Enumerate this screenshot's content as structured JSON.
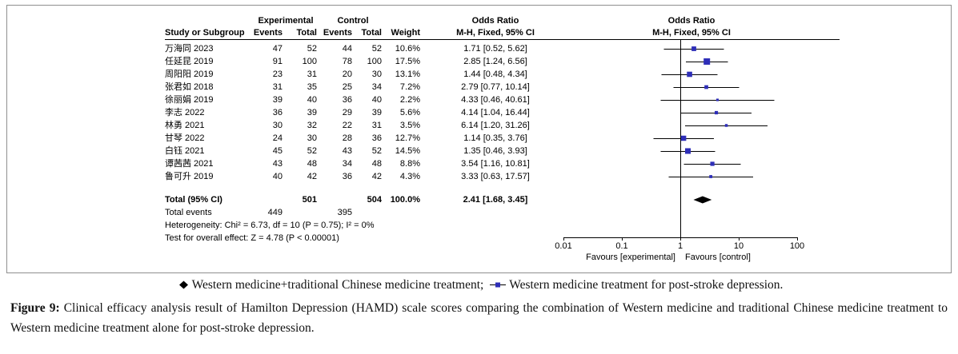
{
  "figure": {
    "legend": {
      "diamond_label": "Western medicine+traditional Chinese medicine treatment;",
      "square_label": "Western medicine treatment for post-stroke depression."
    },
    "caption_label": "Figure 9:",
    "caption_text": "Clinical efficacy analysis result of Hamilton Depression (HAMD) scale scores comparing the combination of Western medicine and traditional Chinese medicine treatment to Western medicine treatment alone for post-stroke depression."
  },
  "chart_data": {
    "type": "forest_plot",
    "effect_measure": "Odds Ratio",
    "method": "M-H, Fixed, 95% CI",
    "headers": {
      "study": "Study or Subgroup",
      "group_experimental": "Experimental",
      "group_control": "Control",
      "events": "Events",
      "total": "Total",
      "weight": "Weight",
      "or_col": "Odds Ratio",
      "or_sub": "M-H, Fixed, 95% CI",
      "graph_col": "Odds Ratio",
      "graph_sub": "M-H, Fixed, 95% CI"
    },
    "studies": [
      {
        "name": "万海同 2023",
        "exp_events": 47,
        "exp_total": 52,
        "ctrl_events": 44,
        "ctrl_total": 52,
        "weight": "10.6%",
        "weight_pct": 10.6,
        "or": 1.71,
        "ci_low": 0.52,
        "ci_high": 5.62,
        "or_text": "1.71 [0.52, 5.62]"
      },
      {
        "name": "任延昆 2019",
        "exp_events": 91,
        "exp_total": 100,
        "ctrl_events": 78,
        "ctrl_total": 100,
        "weight": "17.5%",
        "weight_pct": 17.5,
        "or": 2.85,
        "ci_low": 1.24,
        "ci_high": 6.56,
        "or_text": "2.85 [1.24, 6.56]"
      },
      {
        "name": "周阳阳 2019",
        "exp_events": 23,
        "exp_total": 31,
        "ctrl_events": 20,
        "ctrl_total": 30,
        "weight": "13.1%",
        "weight_pct": 13.1,
        "or": 1.44,
        "ci_low": 0.48,
        "ci_high": 4.34,
        "or_text": "1.44 [0.48, 4.34]"
      },
      {
        "name": "张君如 2018",
        "exp_events": 31,
        "exp_total": 35,
        "ctrl_events": 25,
        "ctrl_total": 34,
        "weight": "7.2%",
        "weight_pct": 7.2,
        "or": 2.79,
        "ci_low": 0.77,
        "ci_high": 10.14,
        "or_text": "2.79 [0.77, 10.14]"
      },
      {
        "name": "徐丽娟 2019",
        "exp_events": 39,
        "exp_total": 40,
        "ctrl_events": 36,
        "ctrl_total": 40,
        "weight": "2.2%",
        "weight_pct": 2.2,
        "or": 4.33,
        "ci_low": 0.46,
        "ci_high": 40.61,
        "or_text": "4.33 [0.46, 40.61]"
      },
      {
        "name": "李志 2022",
        "exp_events": 36,
        "exp_total": 39,
        "ctrl_events": 29,
        "ctrl_total": 39,
        "weight": "5.6%",
        "weight_pct": 5.6,
        "or": 4.14,
        "ci_low": 1.04,
        "ci_high": 16.44,
        "or_text": "4.14 [1.04, 16.44]"
      },
      {
        "name": "林勇 2021",
        "exp_events": 30,
        "exp_total": 32,
        "ctrl_events": 22,
        "ctrl_total": 31,
        "weight": "3.5%",
        "weight_pct": 3.5,
        "or": 6.14,
        "ci_low": 1.2,
        "ci_high": 31.26,
        "or_text": "6.14 [1.20, 31.26]"
      },
      {
        "name": "甘琴 2022",
        "exp_events": 24,
        "exp_total": 30,
        "ctrl_events": 28,
        "ctrl_total": 36,
        "weight": "12.7%",
        "weight_pct": 12.7,
        "or": 1.14,
        "ci_low": 0.35,
        "ci_high": 3.76,
        "or_text": "1.14 [0.35, 3.76]"
      },
      {
        "name": "白钰 2021",
        "exp_events": 45,
        "exp_total": 52,
        "ctrl_events": 43,
        "ctrl_total": 52,
        "weight": "14.5%",
        "weight_pct": 14.5,
        "or": 1.35,
        "ci_low": 0.46,
        "ci_high": 3.93,
        "or_text": "1.35 [0.46, 3.93]"
      },
      {
        "name": "谭茜茜 2021",
        "exp_events": 43,
        "exp_total": 48,
        "ctrl_events": 34,
        "ctrl_total": 48,
        "weight": "8.8%",
        "weight_pct": 8.8,
        "or": 3.54,
        "ci_low": 1.16,
        "ci_high": 10.81,
        "or_text": "3.54 [1.16, 10.81]"
      },
      {
        "name": "鲁可升 2019",
        "exp_events": 40,
        "exp_total": 42,
        "ctrl_events": 36,
        "ctrl_total": 42,
        "weight": "4.3%",
        "weight_pct": 4.3,
        "or": 3.33,
        "ci_low": 0.63,
        "ci_high": 17.57,
        "or_text": "3.33 [0.63, 17.57]"
      }
    ],
    "total": {
      "label": "Total (95% CI)",
      "exp_total": 501,
      "ctrl_total": 504,
      "weight": "100.0%",
      "or": 2.41,
      "ci_low": 1.68,
      "ci_high": 3.45,
      "or_text": "2.41 [1.68, 3.45]"
    },
    "total_events": {
      "label": "Total events",
      "exp": 449,
      "ctrl": 395
    },
    "heterogeneity": "Heterogeneity: Chi² = 6.73, df = 10 (P = 0.75); I² = 0%",
    "overall_effect": "Test for overall effect: Z = 4.78 (P < 0.00001)",
    "axis": {
      "scale": "log",
      "min": 0.01,
      "max": 100,
      "ticks": [
        0.01,
        0.1,
        1,
        10,
        100
      ]
    },
    "favours_left": "Favours [experimental]",
    "favours_right": "Favours [control]",
    "colors": {
      "marker": "#2e2eb8",
      "ci_line": "#000000",
      "diamond": "#000000"
    }
  }
}
